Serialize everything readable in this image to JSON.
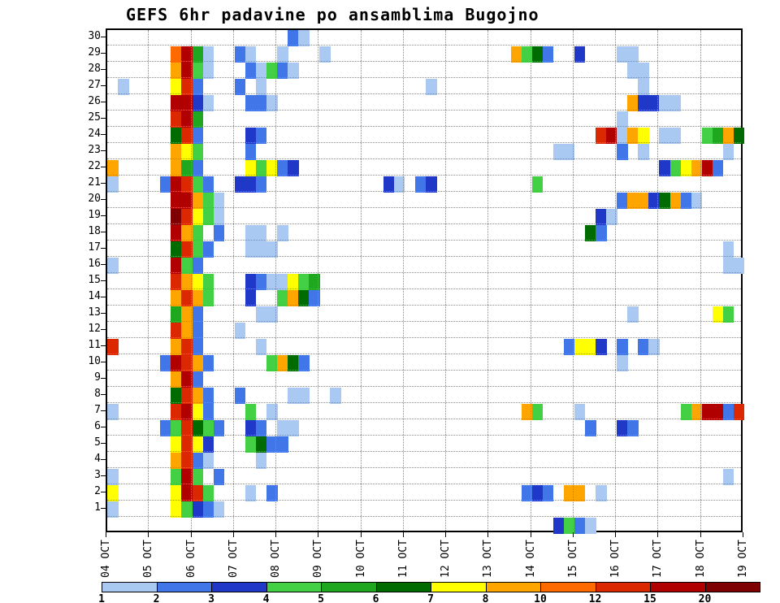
{
  "title": "GEFS 6hr padavine po ansamblima Bugojno",
  "chart_data": {
    "type": "heatmap",
    "title": "GEFS 6hr padavine po ansamblima Bugojno",
    "x_axis": {
      "tick_labels": [
        "04 OCT",
        "05 OCT",
        "06 OCT",
        "07 OCT",
        "08 OCT",
        "09 OCT",
        "10 OCT",
        "11 OCT",
        "12 OCT",
        "13 OCT",
        "14 OCT",
        "15 OCT",
        "16 OCT",
        "17 OCT",
        "18 OCT",
        "19 OCT"
      ],
      "periods_per_day": 4
    },
    "y_axis": {
      "tick_labels": [
        "30",
        "29",
        "28",
        "27",
        "26",
        "25",
        "24",
        "23",
        "22",
        "21",
        "20",
        "19",
        "18",
        "17",
        "16",
        "15",
        "14",
        "13",
        "12",
        "11",
        "10",
        "9",
        "8",
        "7",
        "6",
        "5",
        "4",
        "3",
        "2",
        "1"
      ]
    },
    "n_rows": 31,
    "n_cols": 60,
    "thresholds": [
      1,
      2,
      3,
      4,
      5,
      6,
      7,
      8,
      10,
      12,
      15,
      20
    ],
    "legend": {
      "labels": [
        "1",
        "2",
        "3",
        "4",
        "5",
        "6",
        "7",
        "8",
        "10",
        "12",
        "15",
        "20"
      ],
      "colors": [
        "#A9C8F2",
        "#4176E8",
        "#2038C8",
        "#44D044",
        "#1FA81F",
        "#006B00",
        "#FFFF00",
        "#FFA500",
        "#FF6A00",
        "#DC2800",
        "#B00000",
        "#7E0000"
      ]
    },
    "cells": [
      [
        30,
        17,
        2
      ],
      [
        30,
        18,
        1
      ],
      [
        29,
        6,
        10
      ],
      [
        29,
        7,
        15
      ],
      [
        29,
        8,
        5
      ],
      [
        29,
        9,
        1
      ],
      [
        29,
        12,
        2
      ],
      [
        29,
        13,
        1
      ],
      [
        29,
        16,
        1
      ],
      [
        29,
        20,
        1
      ],
      [
        29,
        38,
        8
      ],
      [
        29,
        39,
        4
      ],
      [
        29,
        40,
        6
      ],
      [
        29,
        41,
        2
      ],
      [
        29,
        44,
        3
      ],
      [
        29,
        48,
        1
      ],
      [
        29,
        49,
        1
      ],
      [
        28,
        6,
        8
      ],
      [
        28,
        7,
        16
      ],
      [
        28,
        8,
        4
      ],
      [
        28,
        9,
        1
      ],
      [
        28,
        13,
        2
      ],
      [
        28,
        14,
        1
      ],
      [
        28,
        15,
        4
      ],
      [
        28,
        16,
        2
      ],
      [
        28,
        17,
        1
      ],
      [
        28,
        49,
        1
      ],
      [
        28,
        50,
        1
      ],
      [
        27,
        1,
        1
      ],
      [
        27,
        6,
        7
      ],
      [
        27,
        7,
        12
      ],
      [
        27,
        8,
        2
      ],
      [
        27,
        12,
        2
      ],
      [
        27,
        14,
        1
      ],
      [
        27,
        30,
        1
      ],
      [
        27,
        50,
        1
      ],
      [
        26,
        6,
        16
      ],
      [
        26,
        7,
        18
      ],
      [
        26,
        8,
        3
      ],
      [
        26,
        9,
        1
      ],
      [
        26,
        13,
        2
      ],
      [
        26,
        14,
        2
      ],
      [
        26,
        15,
        1
      ],
      [
        26,
        49,
        8
      ],
      [
        26,
        50,
        3
      ],
      [
        26,
        51,
        3
      ],
      [
        26,
        52,
        1
      ],
      [
        26,
        53,
        1
      ],
      [
        25,
        6,
        12
      ],
      [
        25,
        7,
        16
      ],
      [
        25,
        8,
        5
      ],
      [
        25,
        48,
        1
      ],
      [
        24,
        6,
        6
      ],
      [
        24,
        7,
        12
      ],
      [
        24,
        8,
        2
      ],
      [
        24,
        13,
        3
      ],
      [
        24,
        14,
        2
      ],
      [
        24,
        46,
        12
      ],
      [
        24,
        47,
        18
      ],
      [
        24,
        48,
        1
      ],
      [
        24,
        49,
        8
      ],
      [
        24,
        50,
        7
      ],
      [
        24,
        52,
        1
      ],
      [
        24,
        53,
        1
      ],
      [
        24,
        56,
        4
      ],
      [
        24,
        57,
        5
      ],
      [
        24,
        58,
        8
      ],
      [
        24,
        59,
        6
      ],
      [
        23,
        6,
        8
      ],
      [
        23,
        7,
        7
      ],
      [
        23,
        8,
        4
      ],
      [
        23,
        13,
        2
      ],
      [
        23,
        42,
        1
      ],
      [
        23,
        43,
        1
      ],
      [
        23,
        48,
        2
      ],
      [
        23,
        50,
        1
      ],
      [
        23,
        58,
        1
      ],
      [
        22,
        0,
        8
      ],
      [
        22,
        6,
        8
      ],
      [
        22,
        7,
        5
      ],
      [
        22,
        8,
        2
      ],
      [
        22,
        13,
        7
      ],
      [
        22,
        14,
        4
      ],
      [
        22,
        15,
        7
      ],
      [
        22,
        16,
        2
      ],
      [
        22,
        17,
        3
      ],
      [
        22,
        52,
        3
      ],
      [
        22,
        53,
        4
      ],
      [
        22,
        54,
        7
      ],
      [
        22,
        55,
        8
      ],
      [
        22,
        56,
        16
      ],
      [
        22,
        57,
        2
      ],
      [
        21,
        0,
        1
      ],
      [
        21,
        5,
        2
      ],
      [
        21,
        6,
        16
      ],
      [
        21,
        7,
        12
      ],
      [
        21,
        8,
        4
      ],
      [
        21,
        9,
        2
      ],
      [
        21,
        12,
        3
      ],
      [
        21,
        13,
        3
      ],
      [
        21,
        14,
        2
      ],
      [
        21,
        26,
        3
      ],
      [
        21,
        27,
        1
      ],
      [
        21,
        29,
        2
      ],
      [
        21,
        30,
        3
      ],
      [
        21,
        40,
        4
      ],
      [
        20,
        6,
        18
      ],
      [
        20,
        7,
        16
      ],
      [
        20,
        8,
        8
      ],
      [
        20,
        9,
        4
      ],
      [
        20,
        10,
        1
      ],
      [
        20,
        48,
        2
      ],
      [
        20,
        49,
        8
      ],
      [
        20,
        50,
        8
      ],
      [
        20,
        51,
        3
      ],
      [
        20,
        52,
        6
      ],
      [
        20,
        53,
        8
      ],
      [
        20,
        54,
        2
      ],
      [
        20,
        55,
        1
      ],
      [
        19,
        6,
        21
      ],
      [
        19,
        7,
        12
      ],
      [
        19,
        8,
        7
      ],
      [
        19,
        9,
        4
      ],
      [
        19,
        10,
        1
      ],
      [
        19,
        46,
        3
      ],
      [
        19,
        47,
        1
      ],
      [
        18,
        6,
        16
      ],
      [
        18,
        7,
        8
      ],
      [
        18,
        8,
        4
      ],
      [
        18,
        10,
        2
      ],
      [
        18,
        13,
        1
      ],
      [
        18,
        14,
        1
      ],
      [
        18,
        16,
        1
      ],
      [
        18,
        45,
        6
      ],
      [
        18,
        46,
        2
      ],
      [
        17,
        6,
        6
      ],
      [
        17,
        7,
        12
      ],
      [
        17,
        8,
        4
      ],
      [
        17,
        9,
        2
      ],
      [
        17,
        13,
        1
      ],
      [
        17,
        14,
        1
      ],
      [
        17,
        15,
        1
      ],
      [
        17,
        58,
        1
      ],
      [
        16,
        0,
        1
      ],
      [
        16,
        6,
        18
      ],
      [
        16,
        7,
        4
      ],
      [
        16,
        8,
        2
      ],
      [
        16,
        58,
        1
      ],
      [
        16,
        59,
        1
      ],
      [
        15,
        6,
        12
      ],
      [
        15,
        7,
        8
      ],
      [
        15,
        8,
        7
      ],
      [
        15,
        9,
        4
      ],
      [
        15,
        13,
        3
      ],
      [
        15,
        14,
        2
      ],
      [
        15,
        15,
        1
      ],
      [
        15,
        16,
        1
      ],
      [
        15,
        17,
        7
      ],
      [
        15,
        18,
        4
      ],
      [
        15,
        19,
        5
      ],
      [
        14,
        6,
        8
      ],
      [
        14,
        7,
        12
      ],
      [
        14,
        8,
        8
      ],
      [
        14,
        9,
        4
      ],
      [
        14,
        13,
        3
      ],
      [
        14,
        16,
        4
      ],
      [
        14,
        17,
        8
      ],
      [
        14,
        18,
        6
      ],
      [
        14,
        19,
        2
      ],
      [
        13,
        6,
        5
      ],
      [
        13,
        7,
        8
      ],
      [
        13,
        8,
        2
      ],
      [
        13,
        14,
        1
      ],
      [
        13,
        15,
        1
      ],
      [
        13,
        49,
        1
      ],
      [
        13,
        57,
        7
      ],
      [
        13,
        58,
        4
      ],
      [
        12,
        6,
        12
      ],
      [
        12,
        7,
        8
      ],
      [
        12,
        8,
        2
      ],
      [
        12,
        12,
        1
      ],
      [
        11,
        0,
        12
      ],
      [
        11,
        6,
        8
      ],
      [
        11,
        7,
        12
      ],
      [
        11,
        8,
        2
      ],
      [
        11,
        14,
        1
      ],
      [
        11,
        43,
        2
      ],
      [
        11,
        44,
        7
      ],
      [
        11,
        45,
        7
      ],
      [
        11,
        46,
        3
      ],
      [
        11,
        48,
        2
      ],
      [
        11,
        50,
        2
      ],
      [
        11,
        51,
        1
      ],
      [
        10,
        5,
        2
      ],
      [
        10,
        6,
        16
      ],
      [
        10,
        7,
        12
      ],
      [
        10,
        8,
        8
      ],
      [
        10,
        9,
        2
      ],
      [
        10,
        15,
        4
      ],
      [
        10,
        16,
        8
      ],
      [
        10,
        17,
        6
      ],
      [
        10,
        18,
        2
      ],
      [
        10,
        48,
        1
      ],
      [
        9,
        6,
        8
      ],
      [
        9,
        7,
        16
      ],
      [
        9,
        8,
        2
      ],
      [
        8,
        6,
        6
      ],
      [
        8,
        7,
        12
      ],
      [
        8,
        8,
        8
      ],
      [
        8,
        9,
        2
      ],
      [
        8,
        12,
        2
      ],
      [
        8,
        17,
        1
      ],
      [
        8,
        18,
        1
      ],
      [
        8,
        21,
        1
      ],
      [
        7,
        0,
        1
      ],
      [
        7,
        6,
        12
      ],
      [
        7,
        7,
        18
      ],
      [
        7,
        8,
        7
      ],
      [
        7,
        9,
        2
      ],
      [
        7,
        13,
        4
      ],
      [
        7,
        15,
        1
      ],
      [
        7,
        39,
        8
      ],
      [
        7,
        40,
        4
      ],
      [
        7,
        44,
        1
      ],
      [
        7,
        54,
        4
      ],
      [
        7,
        55,
        8
      ],
      [
        7,
        56,
        18
      ],
      [
        7,
        57,
        16
      ],
      [
        7,
        58,
        2
      ],
      [
        7,
        59,
        12
      ],
      [
        6,
        5,
        2
      ],
      [
        6,
        6,
        4
      ],
      [
        6,
        7,
        12
      ],
      [
        6,
        8,
        6
      ],
      [
        6,
        9,
        4
      ],
      [
        6,
        10,
        2
      ],
      [
        6,
        13,
        3
      ],
      [
        6,
        14,
        2
      ],
      [
        6,
        16,
        1
      ],
      [
        6,
        17,
        1
      ],
      [
        6,
        45,
        2
      ],
      [
        6,
        48,
        3
      ],
      [
        6,
        49,
        2
      ],
      [
        5,
        6,
        7
      ],
      [
        5,
        7,
        12
      ],
      [
        5,
        8,
        7
      ],
      [
        5,
        9,
        3
      ],
      [
        5,
        13,
        4
      ],
      [
        5,
        14,
        6
      ],
      [
        5,
        15,
        2
      ],
      [
        5,
        16,
        2
      ],
      [
        4,
        6,
        8
      ],
      [
        4,
        7,
        12
      ],
      [
        4,
        8,
        2
      ],
      [
        4,
        9,
        1
      ],
      [
        4,
        14,
        1
      ],
      [
        3,
        0,
        1
      ],
      [
        3,
        6,
        4
      ],
      [
        3,
        7,
        16
      ],
      [
        3,
        8,
        4
      ],
      [
        3,
        10,
        2
      ],
      [
        3,
        58,
        1
      ],
      [
        2,
        0,
        7
      ],
      [
        2,
        6,
        7
      ],
      [
        2,
        7,
        18
      ],
      [
        2,
        8,
        12
      ],
      [
        2,
        9,
        4
      ],
      [
        2,
        13,
        1
      ],
      [
        2,
        15,
        2
      ],
      [
        2,
        39,
        2
      ],
      [
        2,
        40,
        3
      ],
      [
        2,
        41,
        2
      ],
      [
        2,
        43,
        8
      ],
      [
        2,
        44,
        8
      ],
      [
        2,
        46,
        1
      ],
      [
        1,
        0,
        1
      ],
      [
        1,
        6,
        7
      ],
      [
        1,
        7,
        4
      ],
      [
        1,
        8,
        3
      ],
      [
        1,
        9,
        2
      ],
      [
        1,
        10,
        1
      ],
      [
        0,
        42,
        3
      ],
      [
        0,
        43,
        4
      ],
      [
        0,
        44,
        2
      ],
      [
        0,
        45,
        1
      ]
    ]
  }
}
